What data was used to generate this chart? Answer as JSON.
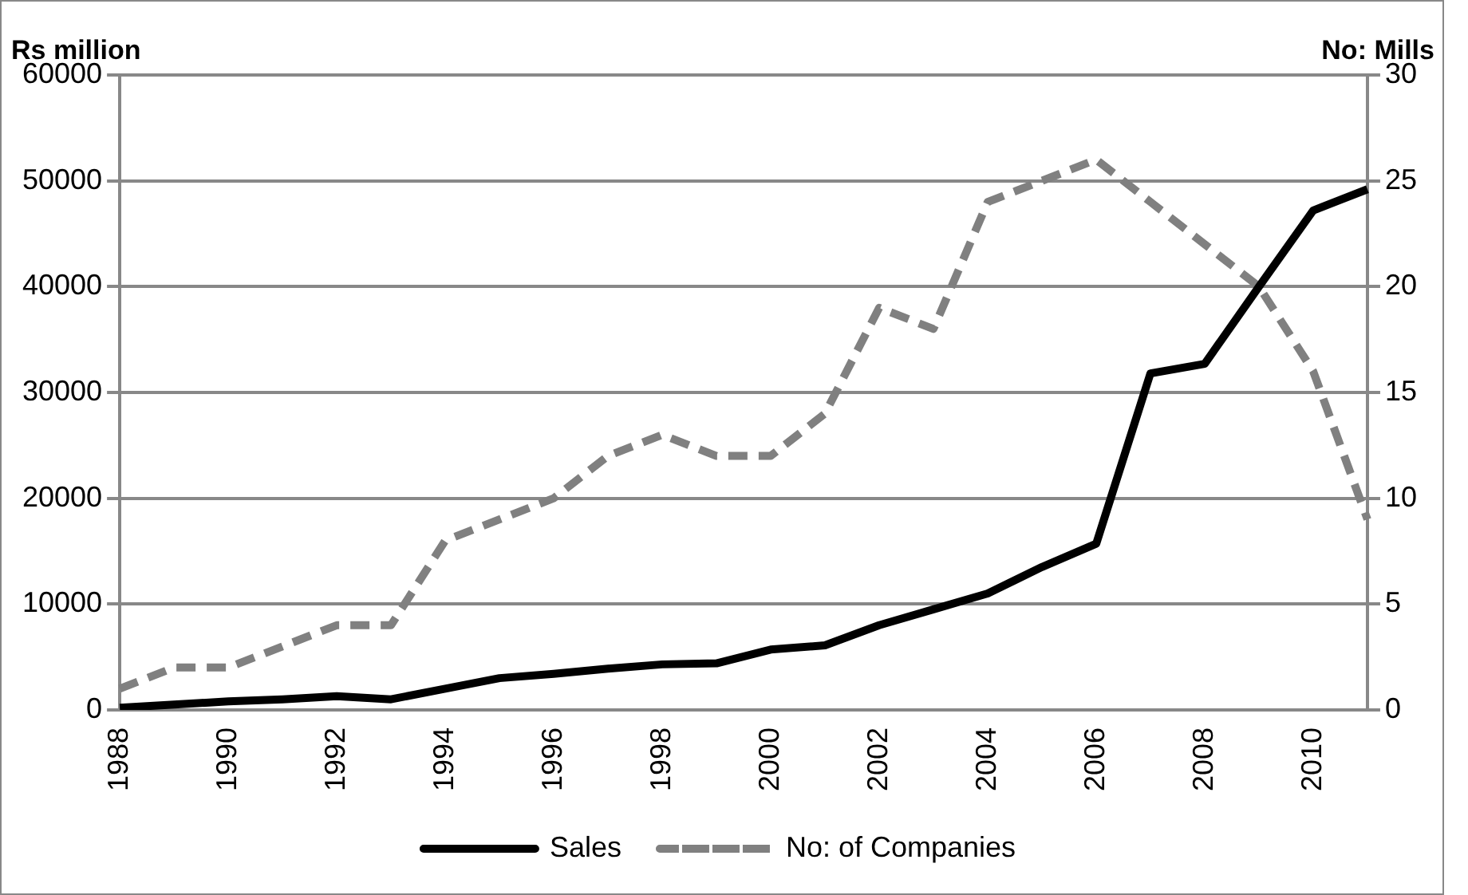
{
  "chart_data": {
    "type": "line",
    "ylabel": "Rs million",
    "y2label": "No: Mills",
    "categories": [
      "1988",
      null,
      "1990",
      null,
      "1992",
      null,
      "1994",
      null,
      "1996",
      null,
      "1998",
      null,
      "2000",
      null,
      "2002",
      null,
      "2004",
      null,
      "2006",
      null,
      "2008",
      null,
      "2010",
      null
    ],
    "series": [
      {
        "name": "Sales",
        "color": "#000000",
        "line_style": "solid",
        "values": [
          200,
          500,
          800,
          1000,
          1300,
          1000,
          2000,
          3000,
          3400,
          3900,
          4300,
          4400,
          5700,
          6100,
          8000,
          9500,
          11000,
          13500,
          15700,
          31800,
          32700,
          40000,
          47200,
          49200
        ]
      },
      {
        "name": "No: of Companies",
        "color": "#808080",
        "line_style": "dashed",
        "axis": "y2",
        "values": [
          1,
          2,
          2,
          3,
          4,
          4,
          8,
          9,
          10,
          12,
          13,
          12,
          12,
          14,
          19,
          18,
          24,
          25,
          26,
          24,
          22,
          20,
          16,
          9
        ]
      }
    ],
    "ylim": [
      0,
      60000
    ],
    "yticks": [
      0,
      10000,
      20000,
      30000,
      40000,
      50000,
      60000
    ],
    "y2lim": [
      0,
      30
    ],
    "y2ticks": [
      0,
      5,
      10,
      15,
      20,
      25,
      30
    ],
    "grid": "y",
    "legend": "bottom",
    "marker": "none"
  }
}
